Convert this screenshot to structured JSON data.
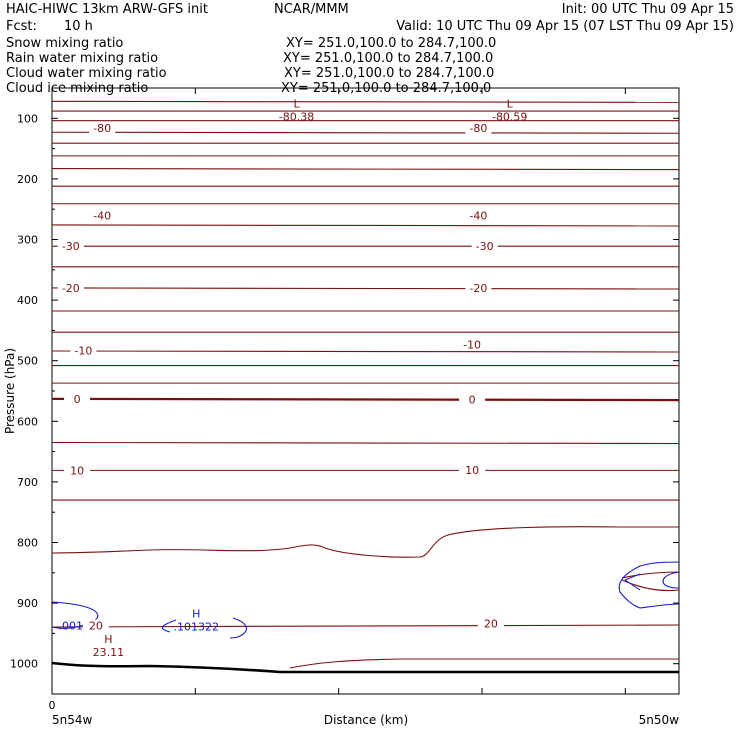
{
  "header": {
    "title_left": "HAIC-HIWC 13km ARW-GFS init",
    "org": "NCAR/MMM",
    "init": "Init: 00 UTC Thu 09 Apr 15",
    "fcst": "Fcst:",
    "fcst_value": "10 h",
    "valid": "Valid: 10 UTC Thu 09 Apr 15 (07 LST Thu 09 Apr 15)"
  },
  "fields": [
    {
      "name": "Snow mixing ratio",
      "xy": "XY= 251.0,100.0 to 284.7,100.0",
      "color": "#000000"
    },
    {
      "name": "Rain water mixing ratio",
      "xy": "XY= 251.0,100.0 to 284.7,100.0",
      "color": "#ff0000"
    },
    {
      "name": "Cloud water mixing ratio",
      "xy": "XY= 251.0,100.0 to 284.7,100.0",
      "color": "#0000cc"
    },
    {
      "name": "Cloud ice mixing ratio",
      "xy": "XY= 251.0,100.0 to 284.7,100.0",
      "color": "#000000"
    }
  ],
  "chart_data": {
    "type": "line",
    "xlabel": "Distance (km)",
    "ylabel": "Pressure (hPa)",
    "x_tick_labels": {
      "left": "0",
      "left_end": "5n54w",
      "right_end": "5n50w"
    },
    "yticks": [
      100,
      200,
      300,
      400,
      500,
      600,
      700,
      800,
      900,
      1000
    ],
    "pressure_range_hPa": [
      50,
      1050
    ],
    "colors": {
      "isotherm": "#7a1010",
      "cloud_water": "#1a1acc",
      "terrain": "#000000"
    },
    "isotherm_labels": [
      {
        "text": "-80",
        "x": 0.08,
        "p": 116
      },
      {
        "text": "-80",
        "x": 0.68,
        "p": 116
      },
      {
        "text": "-40",
        "x": 0.08,
        "p": 260
      },
      {
        "text": "-40",
        "x": 0.68,
        "p": 260
      },
      {
        "text": "-30",
        "x": 0.03,
        "p": 311
      },
      {
        "text": "-30",
        "x": 0.69,
        "p": 311
      },
      {
        "text": "-20",
        "x": 0.03,
        "p": 380
      },
      {
        "text": "-20",
        "x": 0.68,
        "p": 380
      },
      {
        "text": "-10",
        "x": 0.05,
        "p": 483
      },
      {
        "text": "-10",
        "x": 0.67,
        "p": 473
      },
      {
        "text": "0",
        "x": 0.04,
        "p": 563
      },
      {
        "text": "0",
        "x": 0.67,
        "p": 564
      },
      {
        "text": "10",
        "x": 0.04,
        "p": 681
      },
      {
        "text": "10",
        "x": 0.67,
        "p": 680
      },
      {
        "text": "20",
        "x": 0.07,
        "p": 937
      },
      {
        "text": "20",
        "x": 0.7,
        "p": 934
      }
    ],
    "extrema": [
      {
        "mark": "L",
        "value": "-80.38",
        "x": 0.39,
        "p": 97,
        "color": "#7a1010"
      },
      {
        "mark": "L",
        "value": "-80.59",
        "x": 0.73,
        "p": 97,
        "color": "#7a1010"
      },
      {
        "mark": "H",
        "value": ".101322",
        "x": 0.23,
        "p": 939,
        "color": "#1a1acc"
      },
      {
        "mark": "H",
        "value": "23.11",
        "x": 0.09,
        "p": 981,
        "color": "#7a1010"
      },
      {
        "mark": "",
        "value": ".001",
        "x": 0.03,
        "p": 937,
        "color": "#1a1acc"
      }
    ],
    "isotherm_levels_p": [
      72,
      88,
      104,
      123,
      141,
      162,
      183,
      212,
      241,
      276,
      311,
      345,
      380,
      418,
      453,
      484,
      508,
      537,
      635,
      681,
      730
    ]
  }
}
